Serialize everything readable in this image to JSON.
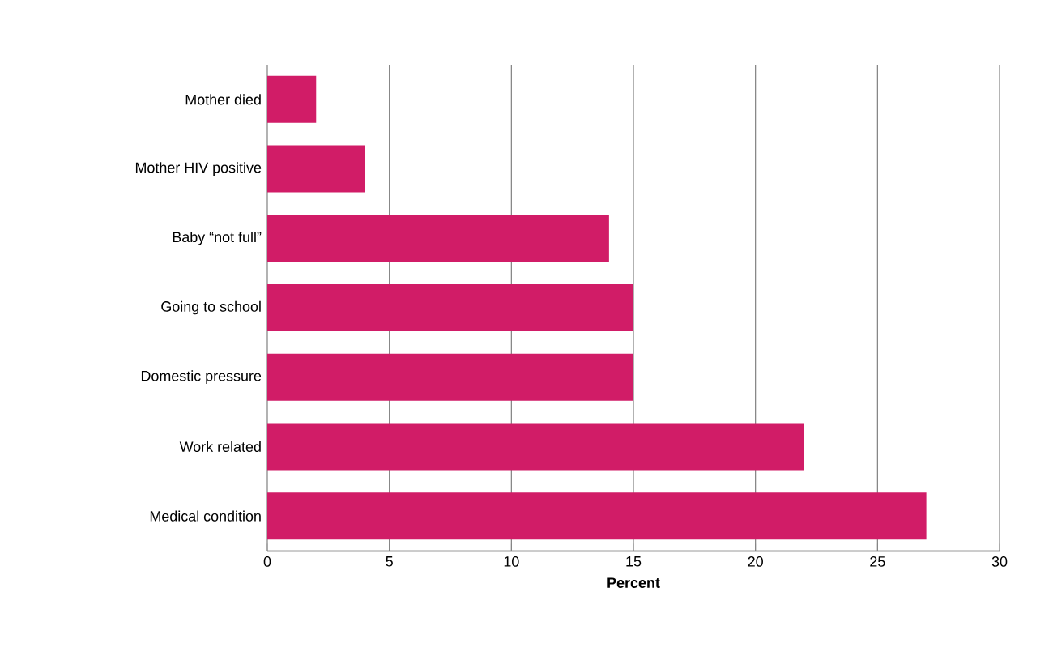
{
  "chart_data": {
    "type": "bar",
    "orientation": "horizontal",
    "xlabel": "Percent",
    "categories": [
      "Mother died",
      "Mother HIV positive",
      "Baby “not full”",
      "Going to school",
      "Domestic pressure",
      "Work related",
      "Medical condition"
    ],
    "values": [
      2,
      4,
      14,
      15,
      15,
      22,
      27
    ],
    "color": "#d11c67",
    "xlim": [
      0,
      30
    ],
    "xticks": [
      0,
      5,
      10,
      15,
      20,
      25,
      30
    ],
    "grid": "x"
  }
}
